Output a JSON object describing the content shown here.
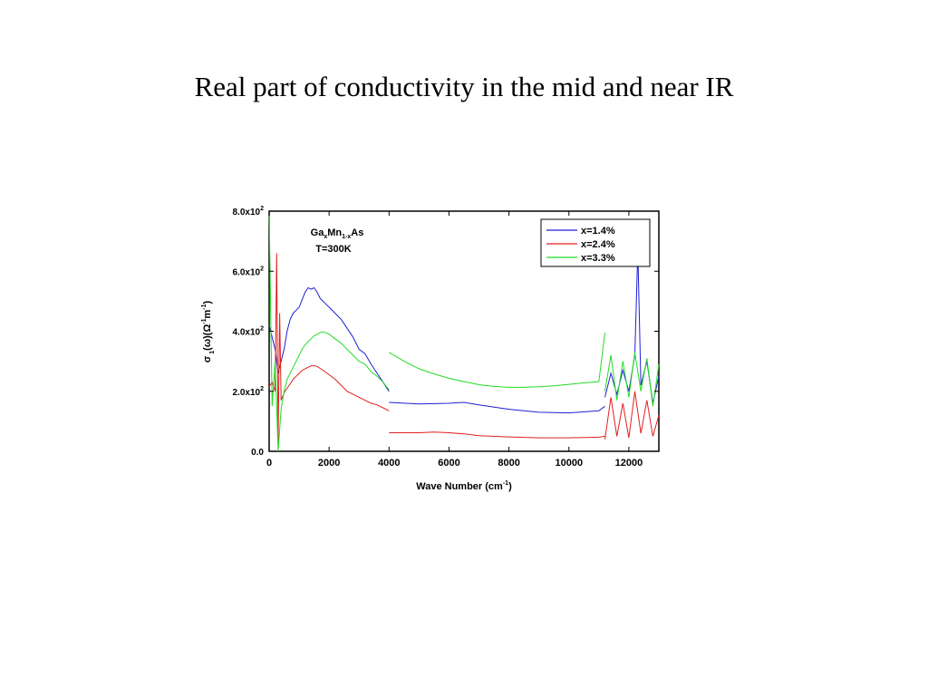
{
  "slide": {
    "title": "Real part of conductivity in the mid and near IR"
  },
  "chart_data": {
    "type": "line",
    "xlabel": "Wave Number (cm^-1)",
    "ylabel": "σ1(ω)(Ω^-1m^-1)",
    "xlim": [
      0,
      13000
    ],
    "ylim": [
      0,
      800
    ],
    "x_ticks": [
      0,
      2000,
      4000,
      6000,
      8000,
      10000,
      12000
    ],
    "x_tick_labels": [
      "0",
      "2000",
      "4000",
      "6000",
      "8000",
      "10000",
      "12000"
    ],
    "y_ticks": [
      0,
      200,
      400,
      600,
      800
    ],
    "y_tick_labels": [
      "0.0",
      "2.0x10^2",
      "4.0x10^2",
      "6.0x10^2",
      "8.0x10^2"
    ],
    "grid": false,
    "legend_position": "top-right",
    "annotation": {
      "material_base": "Ga",
      "material_sub1": "x",
      "material_mid": "Mn",
      "material_sub2": "1-x",
      "material_end": "As",
      "temperature": "T=300K",
      "color": "#e8892b"
    },
    "series": [
      {
        "name": "x=1.4%",
        "color": "#1f1fd6",
        "segments": [
          {
            "x": [
              0,
              100,
              200,
              300,
              400,
              500,
              600,
              700,
              800,
              900,
              1000,
              1100,
              1200,
              1300,
              1400,
              1500,
              1600,
              1700,
              1800,
              1900,
              2000,
              2200,
              2400,
              2600,
              2800,
              3000,
              3200,
              3400,
              3600,
              3800,
              4000
            ],
            "y": [
              420,
              380,
              340,
              260,
              300,
              340,
              400,
              440,
              460,
              470,
              480,
              505,
              530,
              545,
              540,
              545,
              530,
              510,
              500,
              490,
              480,
              460,
              440,
              410,
              380,
              340,
              325,
              290,
              260,
              230,
              200
            ]
          },
          {
            "x": [
              4000,
              5000,
              6000,
              6500,
              7000,
              8000,
              9000,
              10000,
              11000,
              11200
            ],
            "y": [
              163,
              158,
              160,
              163,
              155,
              140,
              130,
              128,
              135,
              150
            ]
          },
          {
            "x": [
              11200,
              11400,
              11600,
              11800,
              12000,
              12200,
              12300,
              12400,
              12600,
              12800,
              13000
            ],
            "y": [
              180,
              260,
              190,
              270,
              200,
              320,
              670,
              220,
              300,
              160,
              250
            ]
          }
        ]
      },
      {
        "name": "x=2.4%",
        "color": "#e02020",
        "segments": [
          {
            "x": [
              0,
              100,
              200,
              250,
              300,
              350,
              400,
              500,
              600,
              700,
              800,
              900,
              1000,
              1100,
              1200,
              1300,
              1400,
              1500,
              1600,
              1800,
              2000,
              2200,
              2400,
              2600,
              2800,
              3000,
              3200,
              3400,
              3600,
              3800,
              4000
            ],
            "y": [
              215,
              230,
              200,
              660,
              30,
              460,
              170,
              195,
              210,
              225,
              240,
              250,
              260,
              270,
              275,
              280,
              285,
              285,
              283,
              270,
              255,
              240,
              220,
              200,
              190,
              180,
              170,
              160,
              155,
              145,
              135
            ]
          },
          {
            "x": [
              4000,
              5000,
              5500,
              6000,
              6500,
              7000,
              8000,
              9000,
              10000,
              11000,
              11200
            ],
            "y": [
              62,
              62,
              64,
              62,
              58,
              52,
              48,
              45,
              45,
              47,
              50
            ]
          },
          {
            "x": [
              11200,
              11400,
              11600,
              11800,
              12000,
              12200,
              12400,
              12600,
              12800,
              13000
            ],
            "y": [
              40,
              180,
              50,
              160,
              45,
              200,
              60,
              170,
              50,
              120
            ]
          }
        ]
      },
      {
        "name": "x=3.3%",
        "color": "#22dd22",
        "segments": [
          {
            "x": [
              0,
              100,
              200,
              300,
              400,
              500,
              600,
              700,
              800,
              900,
              1000,
              1100,
              1200,
              1300,
              1400,
              1500,
              1600,
              1700,
              1800,
              1900,
              2000,
              2200,
              2400,
              2600,
              2800,
              3000,
              3200,
              3400,
              3600,
              3800,
              4000
            ],
            "y": [
              800,
              150,
              300,
              0,
              140,
              200,
              240,
              260,
              280,
              300,
              320,
              340,
              355,
              365,
              375,
              385,
              390,
              395,
              398,
              395,
              390,
              375,
              360,
              340,
              320,
              300,
              290,
              265,
              250,
              230,
              205
            ]
          },
          {
            "x": [
              4000,
              4500,
              5000,
              5500,
              6000,
              6500,
              7000,
              7500,
              8000,
              8500,
              9000,
              9500,
              10000,
              10500,
              11000,
              11200
            ],
            "y": [
              330,
              300,
              275,
              258,
              243,
              232,
              222,
              216,
              213,
              213,
              215,
              218,
              223,
              228,
              232,
              395
            ]
          },
          {
            "x": [
              11200,
              11400,
              11600,
              11800,
              12000,
              12200,
              12400,
              12600,
              12800,
              13000
            ],
            "y": [
              200,
              320,
              170,
              300,
              180,
              330,
              200,
              310,
              150,
              290
            ]
          }
        ]
      }
    ]
  }
}
